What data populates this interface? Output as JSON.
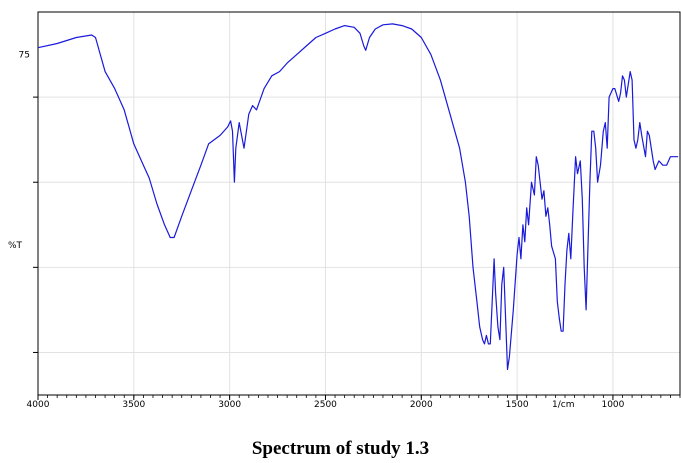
{
  "chart_data": {
    "type": "line",
    "title": "Spectrum of study 1.3",
    "xlabel": "1/cm",
    "ylabel": "%T",
    "x_reversed": true,
    "xlim": [
      4000,
      650
    ],
    "ylim": [
      35,
      80
    ],
    "x_ticks": [
      {
        "value": 4000,
        "label": "4000"
      },
      {
        "value": 3500,
        "label": "3500"
      },
      {
        "value": 3000,
        "label": "3000"
      },
      {
        "value": 2500,
        "label": "2500"
      },
      {
        "value": 2000,
        "label": "2000"
      },
      {
        "value": 1500,
        "label": "1500"
      },
      {
        "value": 1000,
        "label": "1000"
      }
    ],
    "y_ticks": [
      {
        "value": 75,
        "label": "75"
      }
    ],
    "grid": true,
    "line_color": "#1a1adb",
    "series": [
      {
        "name": "",
        "points": [
          [
            4000,
            75.8
          ],
          [
            3900,
            76.3
          ],
          [
            3800,
            77.0
          ],
          [
            3720,
            77.3
          ],
          [
            3700,
            77.0
          ],
          [
            3650,
            73.0
          ],
          [
            3600,
            71.0
          ],
          [
            3550,
            68.5
          ],
          [
            3500,
            64.5
          ],
          [
            3450,
            62.0
          ],
          [
            3420,
            60.5
          ],
          [
            3380,
            57.5
          ],
          [
            3340,
            55.0
          ],
          [
            3310,
            53.5
          ],
          [
            3290,
            53.5
          ],
          [
            3250,
            56.0
          ],
          [
            3200,
            59.0
          ],
          [
            3150,
            62.0
          ],
          [
            3110,
            64.5
          ],
          [
            3050,
            65.5
          ],
          [
            3010,
            66.5
          ],
          [
            2995,
            67.2
          ],
          [
            2985,
            66.0
          ],
          [
            2975,
            60.0
          ],
          [
            2968,
            64.0
          ],
          [
            2950,
            67.0
          ],
          [
            2925,
            64.0
          ],
          [
            2900,
            68.0
          ],
          [
            2880,
            69.0
          ],
          [
            2860,
            68.5
          ],
          [
            2820,
            71.0
          ],
          [
            2780,
            72.5
          ],
          [
            2740,
            73.0
          ],
          [
            2700,
            74.0
          ],
          [
            2650,
            75.0
          ],
          [
            2600,
            76.0
          ],
          [
            2550,
            77.0
          ],
          [
            2500,
            77.5
          ],
          [
            2450,
            78.0
          ],
          [
            2400,
            78.4
          ],
          [
            2350,
            78.2
          ],
          [
            2320,
            77.5
          ],
          [
            2300,
            76.0
          ],
          [
            2290,
            75.5
          ],
          [
            2270,
            77.0
          ],
          [
            2240,
            78.0
          ],
          [
            2200,
            78.5
          ],
          [
            2150,
            78.6
          ],
          [
            2100,
            78.4
          ],
          [
            2050,
            78.0
          ],
          [
            2000,
            77.0
          ],
          [
            1950,
            75.0
          ],
          [
            1900,
            72.0
          ],
          [
            1850,
            68.0
          ],
          [
            1800,
            64.0
          ],
          [
            1770,
            60.0
          ],
          [
            1750,
            56.0
          ],
          [
            1730,
            50.0
          ],
          [
            1710,
            46.0
          ],
          [
            1695,
            43.0
          ],
          [
            1680,
            41.5
          ],
          [
            1670,
            41.0
          ],
          [
            1660,
            42.0
          ],
          [
            1650,
            41.0
          ],
          [
            1640,
            41.0
          ],
          [
            1630,
            46.0
          ],
          [
            1620,
            51.0
          ],
          [
            1612,
            47.0
          ],
          [
            1600,
            43.0
          ],
          [
            1590,
            41.5
          ],
          [
            1580,
            48.0
          ],
          [
            1570,
            50.0
          ],
          [
            1560,
            44.0
          ],
          [
            1550,
            38.0
          ],
          [
            1540,
            39.5
          ],
          [
            1520,
            45.0
          ],
          [
            1500,
            51.5
          ],
          [
            1490,
            53.5
          ],
          [
            1480,
            51.0
          ],
          [
            1470,
            55.0
          ],
          [
            1460,
            53.0
          ],
          [
            1450,
            57.0
          ],
          [
            1440,
            55.0
          ],
          [
            1425,
            60.0
          ],
          [
            1410,
            58.5
          ],
          [
            1400,
            63.0
          ],
          [
            1390,
            62.0
          ],
          [
            1380,
            60.0
          ],
          [
            1370,
            58.0
          ],
          [
            1360,
            59.0
          ],
          [
            1350,
            56.0
          ],
          [
            1340,
            57.0
          ],
          [
            1330,
            55.0
          ],
          [
            1320,
            52.5
          ],
          [
            1300,
            51.0
          ],
          [
            1290,
            46.0
          ],
          [
            1280,
            44.0
          ],
          [
            1270,
            42.5
          ],
          [
            1260,
            42.5
          ],
          [
            1250,
            48.0
          ],
          [
            1240,
            52.0
          ],
          [
            1230,
            54.0
          ],
          [
            1220,
            51.0
          ],
          [
            1210,
            56.0
          ],
          [
            1195,
            63.0
          ],
          [
            1185,
            61.0
          ],
          [
            1170,
            62.5
          ],
          [
            1160,
            58.0
          ],
          [
            1150,
            50.0
          ],
          [
            1140,
            45.0
          ],
          [
            1135,
            49.0
          ],
          [
            1120,
            60.0
          ],
          [
            1110,
            66.0
          ],
          [
            1100,
            66.0
          ],
          [
            1090,
            64.0
          ],
          [
            1080,
            60.0
          ],
          [
            1065,
            62.0
          ],
          [
            1050,
            66.0
          ],
          [
            1040,
            67.0
          ],
          [
            1030,
            64.0
          ],
          [
            1020,
            70.0
          ],
          [
            1000,
            71.0
          ],
          [
            990,
            71.0
          ],
          [
            970,
            69.5
          ],
          [
            960,
            70.5
          ],
          [
            950,
            72.5
          ],
          [
            940,
            72.0
          ],
          [
            930,
            70.0
          ],
          [
            910,
            73.0
          ],
          [
            900,
            72.0
          ],
          [
            890,
            65.0
          ],
          [
            880,
            64.0
          ],
          [
            870,
            65.0
          ],
          [
            860,
            67.0
          ],
          [
            850,
            65.5
          ],
          [
            830,
            63.0
          ],
          [
            820,
            66.0
          ],
          [
            810,
            65.5
          ],
          [
            790,
            62.5
          ],
          [
            780,
            61.5
          ],
          [
            760,
            62.5
          ],
          [
            740,
            62.0
          ],
          [
            720,
            62.0
          ],
          [
            700,
            63.0
          ],
          [
            660,
            63.0
          ]
        ]
      }
    ]
  }
}
